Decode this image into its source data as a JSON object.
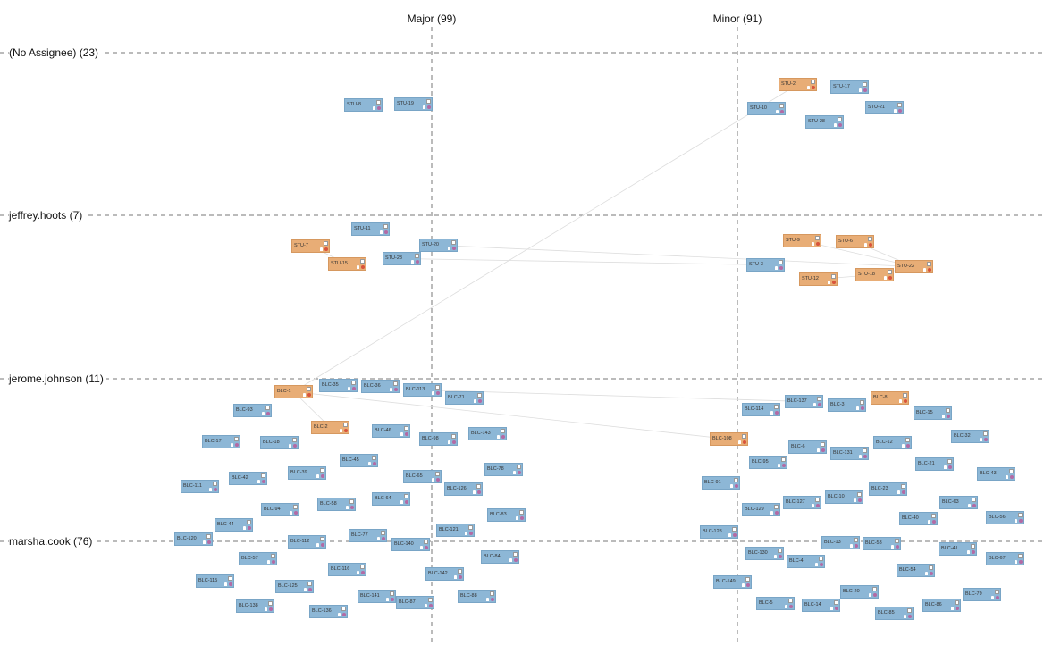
{
  "columns": [
    {
      "label": "Major (99)"
    },
    {
      "label": "Minor (91)"
    }
  ],
  "rows": [
    {
      "label": "(No Assignee) (23)"
    },
    {
      "label": "jeffrey.hoots (7)"
    },
    {
      "label": "jerome.johnson (11)"
    },
    {
      "label": "marsha.cook (76)"
    }
  ],
  "colors": {
    "blue_card": "#8db7d6",
    "orange_card": "#e8ad76",
    "gridline": "#777777",
    "link": "#dddddd"
  },
  "icons": [
    "attachment-icon",
    "user-icon",
    "priority-icon"
  ],
  "cards": [
    {
      "key": "STU-8",
      "color": "blue"
    },
    {
      "key": "STU-19",
      "color": "blue"
    },
    {
      "key": "STU-2",
      "color": "orange"
    },
    {
      "key": "STU-17",
      "color": "blue"
    },
    {
      "key": "STU-10",
      "color": "blue"
    },
    {
      "key": "STU-21",
      "color": "blue"
    },
    {
      "key": "STU-28",
      "color": "blue"
    },
    {
      "key": "STU-11",
      "color": "blue"
    },
    {
      "key": "STU-7",
      "color": "orange"
    },
    {
      "key": "STU-20",
      "color": "blue"
    },
    {
      "key": "STU-15",
      "color": "orange"
    },
    {
      "key": "STU-23",
      "color": "blue"
    },
    {
      "key": "STU-9",
      "color": "orange"
    },
    {
      "key": "STU-6",
      "color": "orange"
    },
    {
      "key": "STU-3",
      "color": "blue"
    },
    {
      "key": "STU-22",
      "color": "orange"
    },
    {
      "key": "STU-18",
      "color": "orange"
    },
    {
      "key": "STU-12",
      "color": "orange"
    },
    {
      "key": "BLC-1",
      "color": "orange"
    },
    {
      "key": "BLC-35",
      "color": "blue"
    },
    {
      "key": "BLC-36",
      "color": "blue"
    },
    {
      "key": "BLC-113",
      "color": "blue"
    },
    {
      "key": "BLC-71",
      "color": "blue"
    },
    {
      "key": "BLC-93",
      "color": "blue"
    },
    {
      "key": "BLC-2",
      "color": "orange"
    },
    {
      "key": "BLC-46",
      "color": "blue"
    },
    {
      "key": "BLC-143",
      "color": "blue"
    },
    {
      "key": "BLC-17",
      "color": "blue"
    },
    {
      "key": "BLC-18",
      "color": "blue"
    },
    {
      "key": "BLC-98",
      "color": "blue"
    },
    {
      "key": "BLC-45",
      "color": "blue"
    },
    {
      "key": "BLC-78",
      "color": "blue"
    },
    {
      "key": "BLC-39",
      "color": "blue"
    },
    {
      "key": "BLC-65",
      "color": "blue"
    },
    {
      "key": "BLC-42",
      "color": "blue"
    },
    {
      "key": "BLC-111",
      "color": "blue"
    },
    {
      "key": "BLC-126",
      "color": "blue"
    },
    {
      "key": "BLC-64",
      "color": "blue"
    },
    {
      "key": "BLC-58",
      "color": "blue"
    },
    {
      "key": "BLC-94",
      "color": "blue"
    },
    {
      "key": "BLC-83",
      "color": "blue"
    },
    {
      "key": "BLC-44",
      "color": "blue"
    },
    {
      "key": "BLC-121",
      "color": "blue"
    },
    {
      "key": "BLC-77",
      "color": "blue"
    },
    {
      "key": "BLC-120",
      "color": "blue"
    },
    {
      "key": "BLC-112",
      "color": "blue"
    },
    {
      "key": "BLC-140",
      "color": "blue"
    },
    {
      "key": "BLC-57",
      "color": "blue"
    },
    {
      "key": "BLC-84",
      "color": "blue"
    },
    {
      "key": "BLC-116",
      "color": "blue"
    },
    {
      "key": "BLC-142",
      "color": "blue"
    },
    {
      "key": "BLC-115",
      "color": "blue"
    },
    {
      "key": "BLC-125",
      "color": "blue"
    },
    {
      "key": "BLC-141",
      "color": "blue"
    },
    {
      "key": "BLC-88",
      "color": "blue"
    },
    {
      "key": "BLC-87",
      "color": "blue"
    },
    {
      "key": "BLC-138",
      "color": "blue"
    },
    {
      "key": "BLC-136",
      "color": "blue"
    },
    {
      "key": "BLC-137",
      "color": "blue"
    },
    {
      "key": "BLC-8",
      "color": "orange"
    },
    {
      "key": "BLC-114",
      "color": "blue"
    },
    {
      "key": "BLC-3",
      "color": "blue"
    },
    {
      "key": "BLC-15",
      "color": "blue"
    },
    {
      "key": "BLC-108",
      "color": "orange"
    },
    {
      "key": "BLC-32",
      "color": "blue"
    },
    {
      "key": "BLC-6",
      "color": "blue"
    },
    {
      "key": "BLC-12",
      "color": "blue"
    },
    {
      "key": "BLC-131",
      "color": "blue"
    },
    {
      "key": "BLC-95",
      "color": "blue"
    },
    {
      "key": "BLC-21",
      "color": "blue"
    },
    {
      "key": "BLC-43",
      "color": "blue"
    },
    {
      "key": "BLC-91",
      "color": "blue"
    },
    {
      "key": "BLC-23",
      "color": "blue"
    },
    {
      "key": "BLC-10",
      "color": "blue"
    },
    {
      "key": "BLC-127",
      "color": "blue"
    },
    {
      "key": "BLC-63",
      "color": "blue"
    },
    {
      "key": "BLC-129",
      "color": "blue"
    },
    {
      "key": "BLC-40",
      "color": "blue"
    },
    {
      "key": "BLC-56",
      "color": "blue"
    },
    {
      "key": "BLC-128",
      "color": "blue"
    },
    {
      "key": "BLC-13",
      "color": "blue"
    },
    {
      "key": "BLC-53",
      "color": "blue"
    },
    {
      "key": "BLC-41",
      "color": "blue"
    },
    {
      "key": "BLC-130",
      "color": "blue"
    },
    {
      "key": "BLC-4",
      "color": "blue"
    },
    {
      "key": "BLC-67",
      "color": "blue"
    },
    {
      "key": "BLC-54",
      "color": "blue"
    },
    {
      "key": "BLC-149",
      "color": "blue"
    },
    {
      "key": "BLC-20",
      "color": "blue"
    },
    {
      "key": "BLC-79",
      "color": "blue"
    },
    {
      "key": "BLC-5",
      "color": "blue"
    },
    {
      "key": "BLC-14",
      "color": "blue"
    },
    {
      "key": "BLC-86",
      "color": "blue"
    },
    {
      "key": "BLC-85",
      "color": "blue"
    }
  ],
  "links": [
    [
      "BLC-1",
      "STU-2"
    ],
    [
      "STU-20",
      "STU-22"
    ],
    [
      "STU-23",
      "STU-3"
    ],
    [
      "STU-7",
      "STU-15"
    ],
    [
      "STU-9",
      "STU-22"
    ],
    [
      "STU-6",
      "STU-22"
    ],
    [
      "STU-18",
      "STU-22"
    ],
    [
      "STU-12",
      "STU-18"
    ],
    [
      "BLC-1",
      "BLC-108"
    ],
    [
      "BLC-113",
      "BLC-137"
    ],
    [
      "BLC-1",
      "BLC-2"
    ]
  ]
}
